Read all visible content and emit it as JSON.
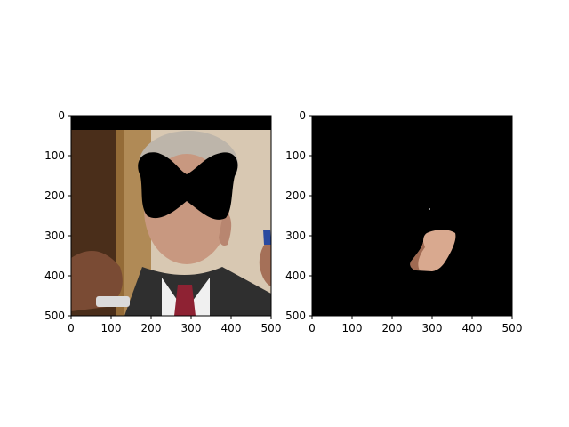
{
  "figure": {
    "background": "#ffffff"
  },
  "chart_data": [
    {
      "type": "image",
      "title": "",
      "xlabel": "",
      "ylabel": "",
      "xlim": [
        0,
        500
      ],
      "ylim": [
        500,
        0
      ],
      "x_ticks": [
        0,
        100,
        200,
        300,
        400,
        500
      ],
      "y_ticks": [
        0,
        100,
        200,
        300,
        400,
        500
      ],
      "content": "photo-with-mask",
      "regions": {
        "top_black_band_y": [
          0,
          35
        ],
        "bowtie_mask_center": [
          290,
          200
        ]
      },
      "colors": {
        "background_wall": "#d8c8b2",
        "backdrop_dark": "#5a3a22",
        "hair": "#bdb5aa",
        "skin": "#c89880",
        "suit": "#2f2f2f",
        "shirt": "#f0f0f0",
        "tie": "#8e2233",
        "mask": "#000000"
      }
    },
    {
      "type": "image",
      "title": "",
      "xlabel": "",
      "ylabel": "",
      "xlim": [
        0,
        500
      ],
      "ylim": [
        500,
        0
      ],
      "x_ticks": [
        0,
        100,
        200,
        300,
        400,
        500
      ],
      "y_ticks": [
        0,
        100,
        200,
        300,
        400,
        500
      ],
      "content": "segmented-region",
      "regions": {
        "skin_patch_x": [
          245,
          360
        ],
        "skin_patch_y": [
          285,
          395
        ]
      },
      "colors": {
        "background": "#000000",
        "patch_light": "#d9a98f",
        "patch_shadow": "#a06a52"
      }
    }
  ]
}
